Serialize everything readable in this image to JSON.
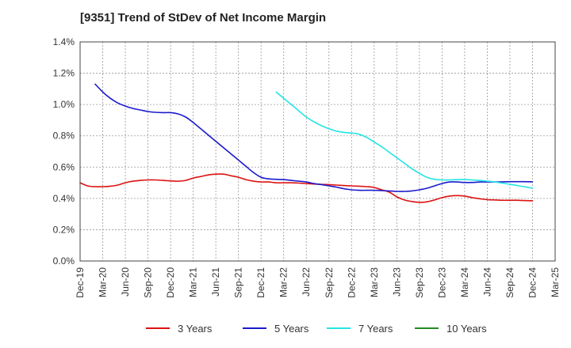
{
  "chart_data": {
    "type": "line",
    "title": "[9351]  Trend of StDev of Net Income Margin",
    "y_unit": "%",
    "ylim": [
      0,
      1.4
    ],
    "y_ticks": [
      0,
      0.2,
      0.4,
      0.6,
      0.8,
      1.0,
      1.2,
      1.4
    ],
    "y_tick_labels": [
      "0.0%",
      "0.2%",
      "0.4%",
      "0.6%",
      "0.8%",
      "1.0%",
      "1.2%",
      "1.4%"
    ],
    "x_tick_labels": [
      "Dec-19",
      "Mar-20",
      "Jun-20",
      "Sep-20",
      "Dec-20",
      "Mar-21",
      "Jun-21",
      "Sep-21",
      "Dec-21",
      "Mar-22",
      "Jun-22",
      "Sep-22",
      "Dec-22",
      "Mar-23",
      "Jun-23",
      "Sep-23",
      "Dec-23",
      "Mar-24",
      "Jun-24",
      "Sep-24",
      "Dec-24",
      "Mar-25"
    ],
    "grid": true,
    "legend_position": "bottom",
    "series": [
      {
        "name": "3 Years",
        "color": "#dd1111",
        "points": [
          [
            "Dec-19",
            0.5
          ],
          [
            "Jan-20",
            0.48
          ],
          [
            "Feb-20",
            0.475
          ],
          [
            "Mar-20",
            0.475
          ],
          [
            "Apr-20",
            0.478
          ],
          [
            "May-20",
            0.485
          ],
          [
            "Jun-20",
            0.5
          ],
          [
            "Jul-20",
            0.51
          ],
          [
            "Aug-20",
            0.515
          ],
          [
            "Sep-20",
            0.518
          ],
          [
            "Oct-20",
            0.518
          ],
          [
            "Nov-20",
            0.515
          ],
          [
            "Dec-20",
            0.512
          ],
          [
            "Jan-21",
            0.51
          ],
          [
            "Feb-21",
            0.515
          ],
          [
            "Mar-21",
            0.53
          ],
          [
            "Apr-21",
            0.54
          ],
          [
            "May-21",
            0.55
          ],
          [
            "Jun-21",
            0.555
          ],
          [
            "Jul-21",
            0.555
          ],
          [
            "Aug-21",
            0.545
          ],
          [
            "Sep-21",
            0.535
          ],
          [
            "Oct-21",
            0.52
          ],
          [
            "Nov-21",
            0.51
          ],
          [
            "Dec-21",
            0.505
          ],
          [
            "Jan-22",
            0.505
          ],
          [
            "Feb-22",
            0.5
          ],
          [
            "Mar-22",
            0.5
          ],
          [
            "Apr-22",
            0.5
          ],
          [
            "May-22",
            0.498
          ],
          [
            "Jun-22",
            0.495
          ],
          [
            "Jul-22",
            0.492
          ],
          [
            "Aug-22",
            0.49
          ],
          [
            "Sep-22",
            0.488
          ],
          [
            "Oct-22",
            0.485
          ],
          [
            "Nov-22",
            0.482
          ],
          [
            "Dec-22",
            0.48
          ],
          [
            "Jan-23",
            0.478
          ],
          [
            "Feb-23",
            0.475
          ],
          [
            "Mar-23",
            0.47
          ],
          [
            "Apr-23",
            0.455
          ],
          [
            "May-23",
            0.44
          ],
          [
            "Jun-23",
            0.41
          ],
          [
            "Jul-23",
            0.39
          ],
          [
            "Aug-23",
            0.38
          ],
          [
            "Sep-23",
            0.375
          ],
          [
            "Oct-23",
            0.378
          ],
          [
            "Nov-23",
            0.39
          ],
          [
            "Dec-23",
            0.405
          ],
          [
            "Jan-24",
            0.415
          ],
          [
            "Feb-24",
            0.418
          ],
          [
            "Mar-24",
            0.415
          ],
          [
            "Apr-24",
            0.405
          ],
          [
            "May-24",
            0.398
          ],
          [
            "Jun-24",
            0.392
          ],
          [
            "Jul-24",
            0.39
          ],
          [
            "Aug-24",
            0.388
          ],
          [
            "Sep-24",
            0.388
          ],
          [
            "Oct-24",
            0.388
          ],
          [
            "Nov-24",
            0.386
          ],
          [
            "Dec-24",
            0.385
          ]
        ]
      },
      {
        "name": "5 Years",
        "color": "#1a1acc",
        "points": [
          [
            "Feb-20",
            1.13
          ],
          [
            "Mar-20",
            1.08
          ],
          [
            "Apr-20",
            1.04
          ],
          [
            "May-20",
            1.01
          ],
          [
            "Jun-20",
            0.99
          ],
          [
            "Jul-20",
            0.975
          ],
          [
            "Aug-20",
            0.965
          ],
          [
            "Sep-20",
            0.955
          ],
          [
            "Oct-20",
            0.95
          ],
          [
            "Nov-20",
            0.948
          ],
          [
            "Dec-20",
            0.948
          ],
          [
            "Jan-21",
            0.94
          ],
          [
            "Feb-21",
            0.92
          ],
          [
            "Mar-21",
            0.885
          ],
          [
            "Apr-21",
            0.845
          ],
          [
            "May-21",
            0.805
          ],
          [
            "Jun-21",
            0.765
          ],
          [
            "Jul-21",
            0.725
          ],
          [
            "Aug-21",
            0.685
          ],
          [
            "Sep-21",
            0.645
          ],
          [
            "Oct-21",
            0.605
          ],
          [
            "Nov-21",
            0.565
          ],
          [
            "Dec-21",
            0.535
          ],
          [
            "Jan-22",
            0.525
          ],
          [
            "Feb-22",
            0.522
          ],
          [
            "Mar-22",
            0.52
          ],
          [
            "Apr-22",
            0.515
          ],
          [
            "May-22",
            0.51
          ],
          [
            "Jun-22",
            0.505
          ],
          [
            "Jul-22",
            0.495
          ],
          [
            "Aug-22",
            0.488
          ],
          [
            "Sep-22",
            0.48
          ],
          [
            "Oct-22",
            0.472
          ],
          [
            "Nov-22",
            0.462
          ],
          [
            "Dec-22",
            0.455
          ],
          [
            "Jan-23",
            0.452
          ],
          [
            "Feb-23",
            0.452
          ],
          [
            "Mar-23",
            0.452
          ],
          [
            "Apr-23",
            0.45
          ],
          [
            "May-23",
            0.448
          ],
          [
            "Jun-23",
            0.445
          ],
          [
            "Jul-23",
            0.445
          ],
          [
            "Aug-23",
            0.448
          ],
          [
            "Sep-23",
            0.455
          ],
          [
            "Oct-23",
            0.465
          ],
          [
            "Nov-23",
            0.48
          ],
          [
            "Dec-23",
            0.495
          ],
          [
            "Jan-24",
            0.505
          ],
          [
            "Feb-24",
            0.505
          ],
          [
            "Mar-24",
            0.502
          ],
          [
            "Apr-24",
            0.502
          ],
          [
            "May-24",
            0.505
          ],
          [
            "Jun-24",
            0.505
          ],
          [
            "Jul-24",
            0.505
          ],
          [
            "Aug-24",
            0.506
          ],
          [
            "Sep-24",
            0.507
          ],
          [
            "Oct-24",
            0.507
          ],
          [
            "Nov-24",
            0.507
          ],
          [
            "Dec-24",
            0.506
          ]
        ]
      },
      {
        "name": "7 Years",
        "color": "#22e5e5",
        "points": [
          [
            "Feb-22",
            1.08
          ],
          [
            "Mar-22",
            1.04
          ],
          [
            "Apr-22",
            1.0
          ],
          [
            "May-22",
            0.96
          ],
          [
            "Jun-22",
            0.92
          ],
          [
            "Jul-22",
            0.89
          ],
          [
            "Aug-22",
            0.865
          ],
          [
            "Sep-22",
            0.845
          ],
          [
            "Oct-22",
            0.83
          ],
          [
            "Nov-22",
            0.822
          ],
          [
            "Dec-22",
            0.818
          ],
          [
            "Jan-23",
            0.81
          ],
          [
            "Feb-23",
            0.79
          ],
          [
            "Mar-23",
            0.76
          ],
          [
            "Apr-23",
            0.73
          ],
          [
            "May-23",
            0.695
          ],
          [
            "Jun-23",
            0.66
          ],
          [
            "Jul-23",
            0.625
          ],
          [
            "Aug-23",
            0.59
          ],
          [
            "Sep-23",
            0.56
          ],
          [
            "Oct-23",
            0.535
          ],
          [
            "Nov-23",
            0.522
          ],
          [
            "Dec-23",
            0.518
          ],
          [
            "Jan-24",
            0.518
          ],
          [
            "Feb-24",
            0.52
          ],
          [
            "Mar-24",
            0.52
          ],
          [
            "Apr-24",
            0.518
          ],
          [
            "May-24",
            0.515
          ],
          [
            "Jun-24",
            0.51
          ],
          [
            "Jul-24",
            0.505
          ],
          [
            "Aug-24",
            0.498
          ],
          [
            "Sep-24",
            0.49
          ],
          [
            "Oct-24",
            0.482
          ],
          [
            "Nov-24",
            0.474
          ],
          [
            "Dec-24",
            0.465
          ]
        ]
      },
      {
        "name": "10 Years",
        "color": "#228b22",
        "points": []
      }
    ]
  }
}
